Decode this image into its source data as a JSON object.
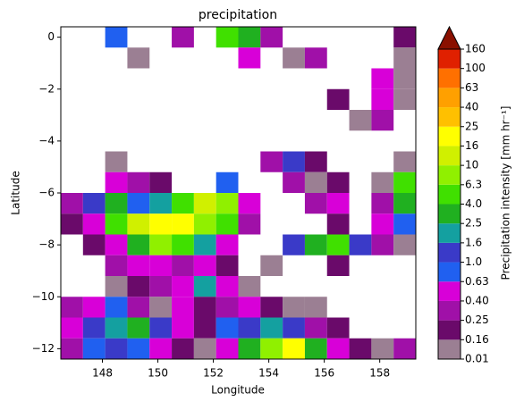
{
  "chart_data": {
    "type": "heatmap",
    "title": "precipitation",
    "x_label": "Longitude",
    "y_label": "Latitude",
    "xlim": [
      146.5,
      159.3
    ],
    "ylim": [
      -12.4,
      0.4
    ],
    "xticks": [
      148,
      150,
      152,
      154,
      156,
      158
    ],
    "yticks": [
      0,
      {
        "value": -2,
        "label": "−2"
      },
      {
        "value": -4,
        "label": "−4"
      },
      {
        "value": -6,
        "label": "−6"
      },
      {
        "value": -8,
        "label": "−8"
      },
      {
        "value": -10,
        "label": "−10"
      },
      {
        "value": -12,
        "label": "−12"
      }
    ],
    "x": [
      146.9,
      147.7,
      148.5,
      149.3,
      150.1,
      150.9,
      151.7,
      152.5,
      153.3,
      154.1,
      154.9,
      155.7,
      156.5,
      157.3,
      158.1,
      158.9
    ],
    "y": [
      0,
      -0.8,
      -1.6,
      -2.4,
      -3.2,
      -4.0,
      -4.8,
      -5.6,
      -6.4,
      -7.2,
      -8.0,
      -8.8,
      -9.6,
      -10.4,
      -11.2,
      -12.0
    ],
    "values": [
      [
        null,
        null,
        0.8,
        null,
        null,
        0.3,
        null,
        5,
        3,
        0.3,
        null,
        null,
        null,
        null,
        null,
        0.2
      ],
      [
        null,
        null,
        null,
        0.1,
        null,
        null,
        null,
        null,
        0.5,
        null,
        0.1,
        0.3,
        null,
        null,
        null,
        0.1
      ],
      [
        null,
        null,
        null,
        null,
        null,
        null,
        null,
        null,
        null,
        null,
        null,
        null,
        null,
        null,
        0.5,
        0.1
      ],
      [
        null,
        null,
        null,
        null,
        null,
        null,
        null,
        null,
        null,
        null,
        null,
        null,
        0.2,
        null,
        0.6,
        0.1
      ],
      [
        null,
        null,
        null,
        null,
        null,
        null,
        null,
        null,
        null,
        null,
        null,
        null,
        null,
        0.1,
        0.3,
        null
      ],
      [
        null,
        null,
        null,
        null,
        null,
        null,
        null,
        null,
        null,
        null,
        null,
        null,
        null,
        null,
        null,
        null
      ],
      [
        null,
        null,
        0.1,
        null,
        null,
        null,
        null,
        null,
        null,
        0.3,
        1.2,
        0.2,
        null,
        null,
        null,
        0.1
      ],
      [
        null,
        null,
        0.5,
        0.3,
        0.2,
        null,
        null,
        0.8,
        null,
        null,
        0.3,
        0.1,
        0.2,
        null,
        0.1,
        6
      ],
      [
        0.3,
        1.5,
        3,
        0.8,
        2,
        5,
        12,
        8,
        0.5,
        null,
        null,
        0.3,
        0.4,
        null,
        0.3,
        3
      ],
      [
        0.2,
        0.6,
        5,
        12,
        18,
        20,
        8,
        4,
        0.3,
        null,
        null,
        null,
        0.2,
        null,
        0.4,
        0.8
      ],
      [
        null,
        0.2,
        0.5,
        3,
        8,
        4,
        2,
        0.6,
        null,
        null,
        1.2,
        3,
        6,
        1.5,
        0.3,
        0.1
      ],
      [
        null,
        null,
        0.3,
        0.4,
        0.5,
        0.3,
        0.6,
        0.2,
        null,
        0.1,
        null,
        null,
        0.2,
        null,
        null,
        null
      ],
      [
        null,
        null,
        0.1,
        0.2,
        0.3,
        0.5,
        2,
        0.4,
        0.1,
        null,
        null,
        null,
        null,
        null,
        null,
        null
      ],
      [
        0.3,
        0.6,
        0.8,
        0.3,
        0.1,
        0.4,
        0.2,
        0.3,
        0.5,
        0.2,
        0.1,
        0.1,
        null,
        null,
        null,
        null
      ],
      [
        0.4,
        1.2,
        2,
        3,
        1,
        0.5,
        0.2,
        0.8,
        1.5,
        2,
        1,
        0.3,
        0.2,
        null,
        null,
        null
      ],
      [
        0.3,
        0.8,
        1.5,
        0.7,
        0.4,
        0.2,
        0.1,
        0.5,
        3,
        8,
        20,
        3,
        0.6,
        0.2,
        0.1,
        0.3
      ]
    ],
    "colorbar": {
      "label": "Precipitation intensity [mm hr⁻¹]",
      "ticks": [
        0.01,
        0.16,
        0.25,
        {
          "value": 0.4,
          "label": "0.40"
        },
        0.63,
        {
          "value": 1,
          "label": "1.0"
        },
        1.6,
        2.5,
        {
          "value": 4,
          "label": "4.0"
        },
        6.3,
        10,
        16,
        25,
        40,
        63,
        100,
        160
      ],
      "colors": [
        "#9b7f93",
        "#6a0a6a",
        "#a010a8",
        "#d800d8",
        "#2060f0",
        "#3a3ac8",
        "#14a0a0",
        "#20b020",
        "#40e000",
        "#90f000",
        "#d0f000",
        "#ffff00",
        "#ffc000",
        "#ffa000",
        "#ff7000",
        "#e02000"
      ],
      "extend_color": "#8a1000"
    }
  }
}
